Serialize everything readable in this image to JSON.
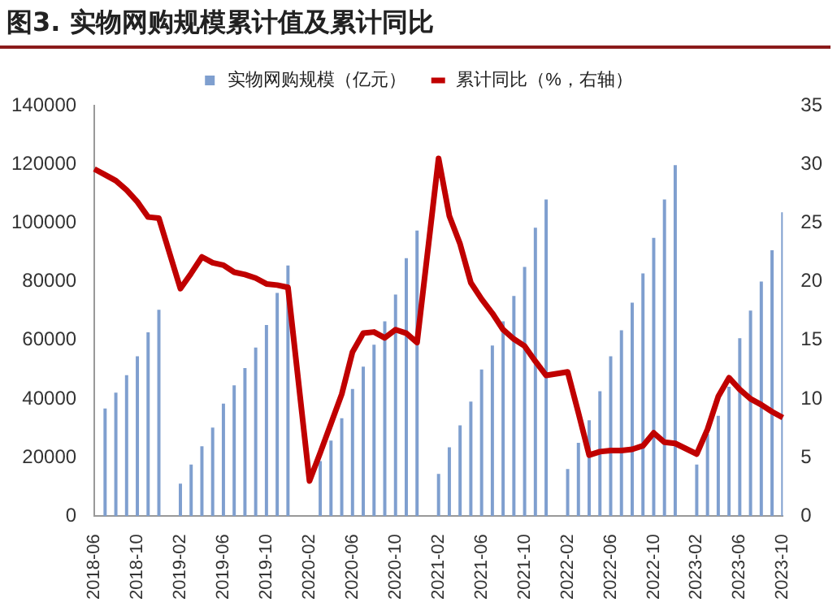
{
  "chart_data": {
    "type": "bar",
    "title": "图3. 实物网购规模累计值及累计同比",
    "categories": [
      "2018-06",
      null,
      null,
      null,
      "2018-10",
      null,
      null,
      null,
      "2019-02",
      null,
      null,
      null,
      "2019-06",
      null,
      null,
      null,
      "2019-10",
      null,
      null,
      null,
      "2020-02",
      null,
      null,
      null,
      "2020-06",
      null,
      null,
      null,
      "2020-10",
      null,
      null,
      null,
      "2021-02",
      null,
      null,
      null,
      "2021-06",
      null,
      null,
      null,
      "2021-10",
      null,
      null,
      null,
      "2022-02",
      null,
      null,
      null,
      "2022-06",
      null,
      null,
      null,
      "2022-10",
      null,
      null,
      null,
      "2023-02",
      null,
      null,
      null,
      "2023-06",
      null,
      null,
      null,
      "2023-10"
    ],
    "series": [
      {
        "name": "实物网购规模（亿元）",
        "color": "#7f9fcf",
        "values": [
          null,
          36700,
          42100,
          48100,
          54500,
          62700,
          70400,
          null,
          11100,
          17600,
          23800,
          30200,
          38400,
          44600,
          50500,
          57500,
          65200,
          76100,
          85500,
          null,
          null,
          18800,
          25800,
          33400,
          43400,
          51000,
          58500,
          66400,
          75600,
          88000,
          97400,
          null,
          14400,
          23500,
          31000,
          39100,
          50000,
          58200,
          66400,
          75100,
          85000,
          98400,
          108000,
          null,
          16100,
          25000,
          32700,
          42600,
          54500,
          63400,
          72800,
          82800,
          94900,
          108000,
          119700,
          null,
          17600,
          28000,
          34200,
          44100,
          60700,
          70100,
          80000,
          90700,
          103600
        ]
      },
      {
        "name": "累计同比（%，右轴）",
        "type": "line",
        "axis": "y2",
        "color": "#c00000",
        "values": [
          29.6,
          29.1,
          28.6,
          27.8,
          26.8,
          25.5,
          25.4,
          null,
          19.4,
          20.7,
          22.1,
          21.6,
          21.4,
          20.8,
          20.6,
          20.3,
          19.8,
          19.7,
          19.5,
          null,
          3.0,
          5.4,
          7.9,
          10.4,
          14.0,
          15.6,
          15.7,
          15.2,
          15.9,
          15.6,
          14.8,
          null,
          30.5,
          25.6,
          23.2,
          19.9,
          18.5,
          17.3,
          15.9,
          15.1,
          14.5,
          13.2,
          12.0,
          null,
          12.3,
          8.8,
          5.2,
          5.5,
          5.6,
          5.6,
          5.7,
          6.0,
          7.1,
          6.3,
          6.2,
          null,
          5.3,
          7.4,
          10.2,
          11.8,
          10.8,
          10.0,
          9.5,
          8.9,
          8.4
        ]
      }
    ],
    "ylim": [
      0,
      140000
    ],
    "yticks": [
      0,
      20000,
      40000,
      60000,
      80000,
      100000,
      120000,
      140000
    ],
    "y2lim": [
      0,
      35
    ],
    "y2ticks": [
      0,
      5,
      10,
      15,
      20,
      25,
      30,
      35
    ],
    "grid": false,
    "legend": "top",
    "marker": "none",
    "line_style": "solid"
  }
}
